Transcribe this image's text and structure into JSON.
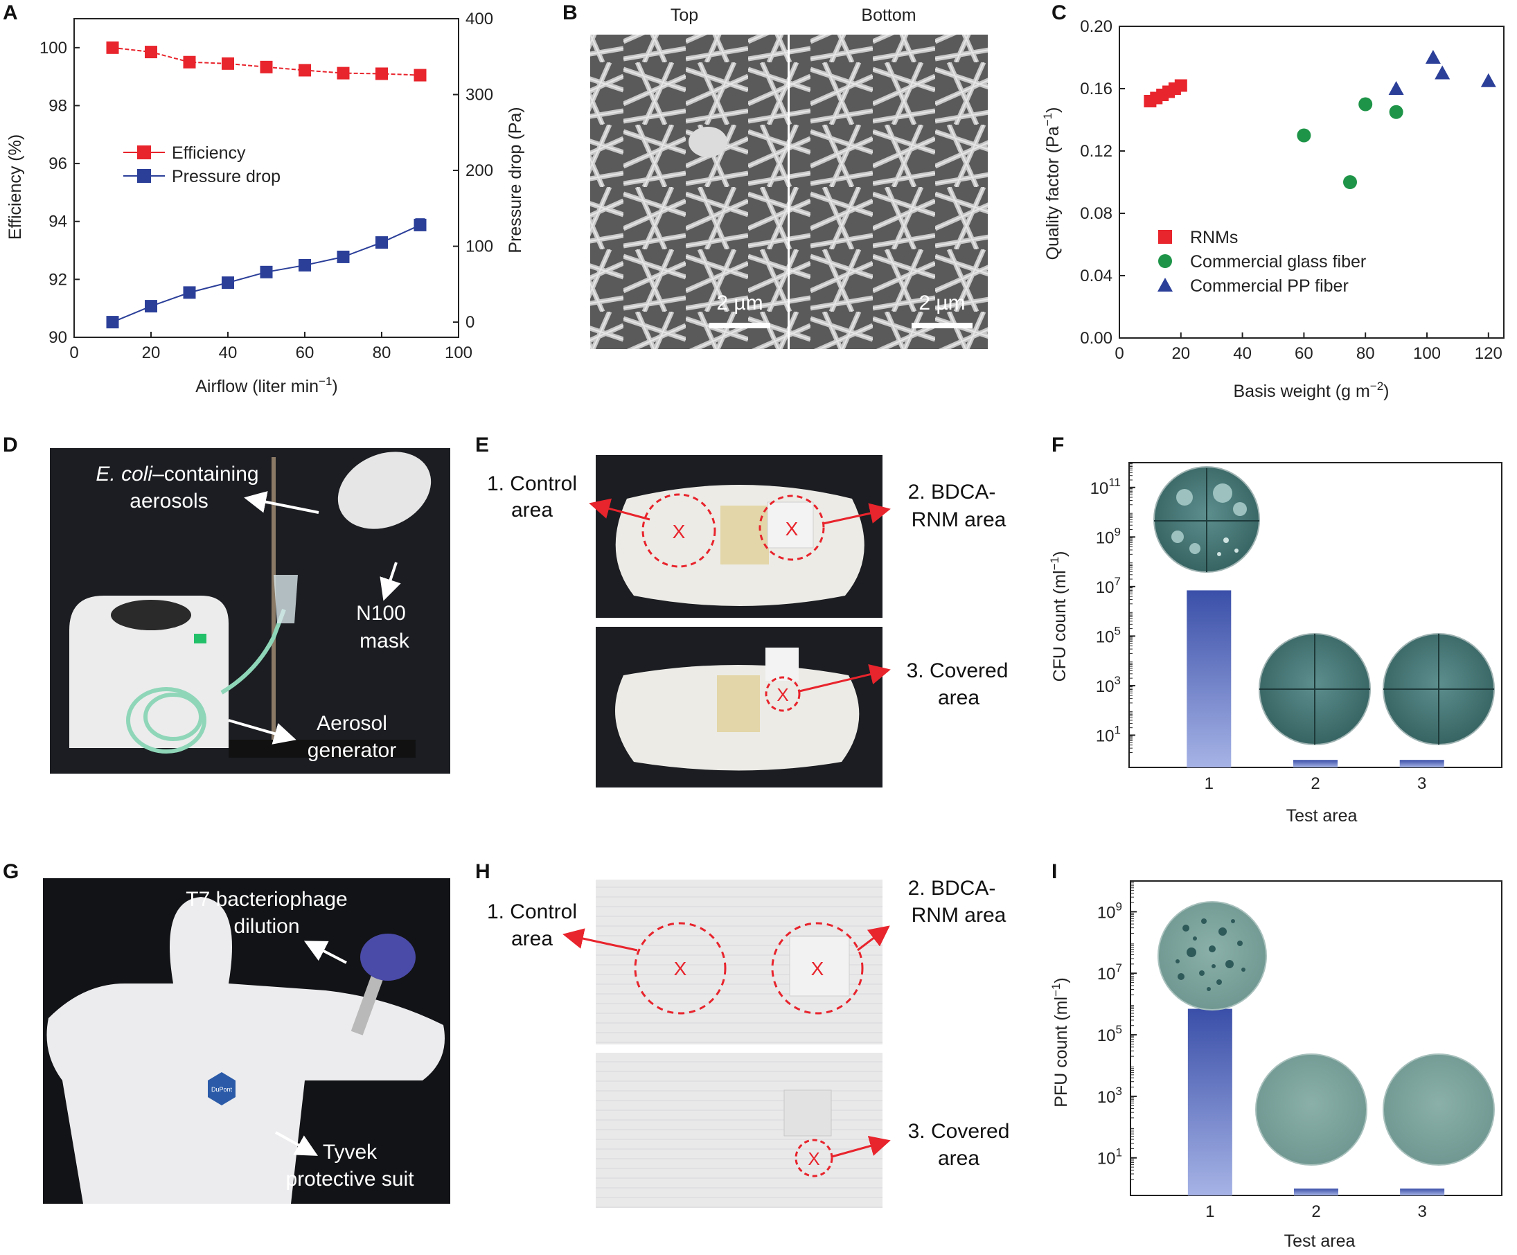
{
  "panels": {
    "A": {
      "letter": "A",
      "xlabel_main": "Airflow (liter min",
      "xlabel_sup": "−1",
      "xlabel_end": ")",
      "ylabel_left": "Efficiency (%)",
      "ylabel_right": "Pressure drop (Pa)"
    },
    "B": {
      "letter": "B",
      "top_label": "Top",
      "bottom_label": "Bottom",
      "scale_left": "2 µm",
      "scale_right": "2 µm"
    },
    "C": {
      "letter": "C",
      "xlabel_main": "Basis weight (g m",
      "xlabel_sup": "−2",
      "xlabel_end": ")",
      "ylabel_main": "Quality factor (Pa",
      "ylabel_sup": "−1",
      "ylabel_end": ")"
    },
    "D": {
      "letter": "D",
      "label_ecoli_it": "E. coli",
      "label_ecoli_rest": "–containing",
      "label_aerosols": "aerosols",
      "label_n100": "N100",
      "label_mask": "mask",
      "label_aerosol": "Aerosol",
      "label_generator": "generator"
    },
    "E": {
      "letter": "E",
      "ann1a": "1. Control",
      "ann1b": "area",
      "ann2a": "2. BDCA-",
      "ann2b": "RNM area",
      "ann3a": "3. Covered",
      "ann3b": "area",
      "mark": "X"
    },
    "F": {
      "letter": "F",
      "xlabel": "Test area",
      "ylabel_main": "CFU count (ml",
      "ylabel_sup": "−1",
      "ylabel_end": ")"
    },
    "G": {
      "letter": "G",
      "label_t7": "T7 bacteriophage",
      "label_dilution": "dilution",
      "label_tyvek": "Tyvek",
      "label_suit": "protective suit",
      "badge": "DuPont"
    },
    "H": {
      "letter": "H",
      "ann1a": "1. Control",
      "ann1b": "area",
      "ann2a": "2. BDCA-",
      "ann2b": "RNM area",
      "ann3a": "3. Covered",
      "ann3b": "area",
      "mark": "X"
    },
    "I": {
      "letter": "I",
      "xlabel": "Test area",
      "ylabel_main": "PFU count (ml",
      "ylabel_sup": "−1",
      "ylabel_end": ")"
    }
  },
  "colors": {
    "efficiency": "#e8242c",
    "pressure": "#2b3f99",
    "rnm": "#e8242c",
    "glass": "#1e9448",
    "pp": "#2b3f99",
    "bar": "#5b6fc4",
    "dashed_red": "#e8242c"
  },
  "chart_data": [
    {
      "id": "A",
      "type": "line",
      "x": [
        10,
        20,
        30,
        40,
        50,
        60,
        70,
        80,
        90
      ],
      "xlim": [
        0,
        100
      ],
      "xticks": [
        0,
        20,
        40,
        60,
        80,
        100
      ],
      "series": [
        {
          "name": "Efficiency",
          "axis": "left",
          "values": [
            100.0,
            99.85,
            99.5,
            99.45,
            99.33,
            99.22,
            99.12,
            99.1,
            99.05
          ]
        },
        {
          "name": "Pressure drop",
          "axis": "right",
          "values": [
            0,
            21,
            39,
            52,
            66,
            75,
            86,
            105,
            128
          ],
          "error": [
            0,
            0,
            0,
            0,
            0,
            0,
            7,
            6,
            8
          ]
        }
      ],
      "ylim_left": [
        90,
        101
      ],
      "yticks_left": [
        90,
        92,
        94,
        96,
        98,
        100
      ],
      "ylim_right": [
        -20,
        400
      ],
      "yticks_right": [
        0,
        100,
        200,
        300,
        400
      ],
      "legend": "center-left",
      "grid": false
    },
    {
      "id": "C",
      "type": "scatter",
      "xlim": [
        0,
        125
      ],
      "xticks": [
        0,
        20,
        40,
        60,
        80,
        100,
        120
      ],
      "ylim": [
        0,
        0.2
      ],
      "yticks": [
        "0.00",
        "0.04",
        "0.08",
        "0.12",
        "0.16",
        "0.20"
      ],
      "series": [
        {
          "name": "RNMs",
          "marker": "square",
          "x": [
            10,
            12,
            14,
            16,
            18,
            20
          ],
          "y": [
            0.152,
            0.154,
            0.156,
            0.158,
            0.16,
            0.162
          ]
        },
        {
          "name": "Commercial glass fiber",
          "marker": "circle",
          "x": [
            60,
            75,
            80,
            90
          ],
          "y": [
            0.13,
            0.1,
            0.15,
            0.145
          ]
        },
        {
          "name": "Commercial PP fiber",
          "marker": "triangle",
          "x": [
            90,
            102,
            105,
            120
          ],
          "y": [
            0.16,
            0.18,
            0.17,
            0.165
          ]
        }
      ],
      "legend": "bottom-left",
      "grid": false
    },
    {
      "id": "F",
      "type": "bar",
      "yscale": "log",
      "categories": [
        "1",
        "2",
        "3"
      ],
      "values": [
        7000000,
        1,
        1
      ],
      "ylim": [
        0.5,
        1000000000000.0
      ],
      "yticks": [
        {
          "base": "10",
          "exp": "1"
        },
        {
          "base": "10",
          "exp": "3"
        },
        {
          "base": "10",
          "exp": "5"
        },
        {
          "base": "10",
          "exp": "7"
        },
        {
          "base": "10",
          "exp": "9"
        },
        {
          "base": "10",
          "exp": "11"
        }
      ],
      "grid": false
    },
    {
      "id": "I",
      "type": "bar",
      "yscale": "log",
      "categories": [
        "1",
        "2",
        "3"
      ],
      "values": [
        700000,
        1,
        1
      ],
      "ylim": [
        0.6,
        10000000000.0
      ],
      "yticks": [
        {
          "base": "10",
          "exp": "1"
        },
        {
          "base": "10",
          "exp": "3"
        },
        {
          "base": "10",
          "exp": "5"
        },
        {
          "base": "10",
          "exp": "7"
        },
        {
          "base": "10",
          "exp": "9"
        }
      ],
      "grid": false
    }
  ]
}
